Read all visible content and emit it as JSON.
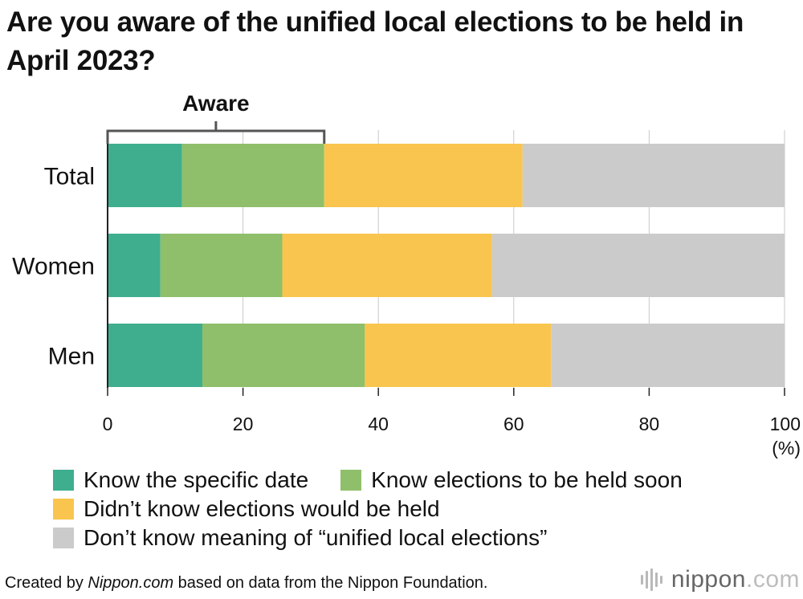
{
  "title": "Are you aware of the unified local elections to be held in April 2023?",
  "bracket_label": "Aware",
  "colors": {
    "specific_date": "#3fae8e",
    "held_soon": "#8fbf6a",
    "didnt_know": "#f9c54e",
    "dont_know_meaning": "#cbcbcb",
    "grid": "#c9c9c9",
    "axis": "#222222"
  },
  "chart_data": {
    "type": "bar",
    "orientation": "horizontal",
    "stacked": true,
    "title": "Are you aware of the unified local elections to be held in April 2023?",
    "categories": [
      "Total",
      "Women",
      "Men"
    ],
    "series": [
      {
        "name": "Know the specific date",
        "values": [
          11.0,
          7.8,
          14.0
        ]
      },
      {
        "name": "Know elections to be held soon",
        "values": [
          21.0,
          18.0,
          24.0
        ]
      },
      {
        "name": "Didn’t know elections would be held",
        "values": [
          29.3,
          31.0,
          27.5
        ]
      },
      {
        "name": "Don’t know meaning of “unified local elections”",
        "values": [
          38.7,
          43.2,
          34.5
        ]
      }
    ],
    "xlim": [
      0,
      100
    ],
    "xticks": [
      "0",
      "20",
      "40",
      "60",
      "80",
      "100"
    ],
    "xunit": "(%)",
    "grid": true,
    "bracket": {
      "label": "Aware",
      "from": 0,
      "to": 32
    }
  },
  "legend": [
    {
      "label": "Know the specific date",
      "color": "#3fae8e"
    },
    {
      "label": "Know elections to be held soon",
      "color": "#8fbf6a"
    },
    {
      "label": "Didn’t know elections would be held",
      "color": "#f9c54e"
    },
    {
      "label": "Don’t know meaning of “unified local elections”",
      "color": "#cbcbcb"
    }
  ],
  "footer": {
    "prefix": "Created by ",
    "source": "Nippon.com",
    "suffix": " based on data from the Nippon Foundation."
  },
  "brand": {
    "name": "nippon",
    "tld": ".com"
  }
}
